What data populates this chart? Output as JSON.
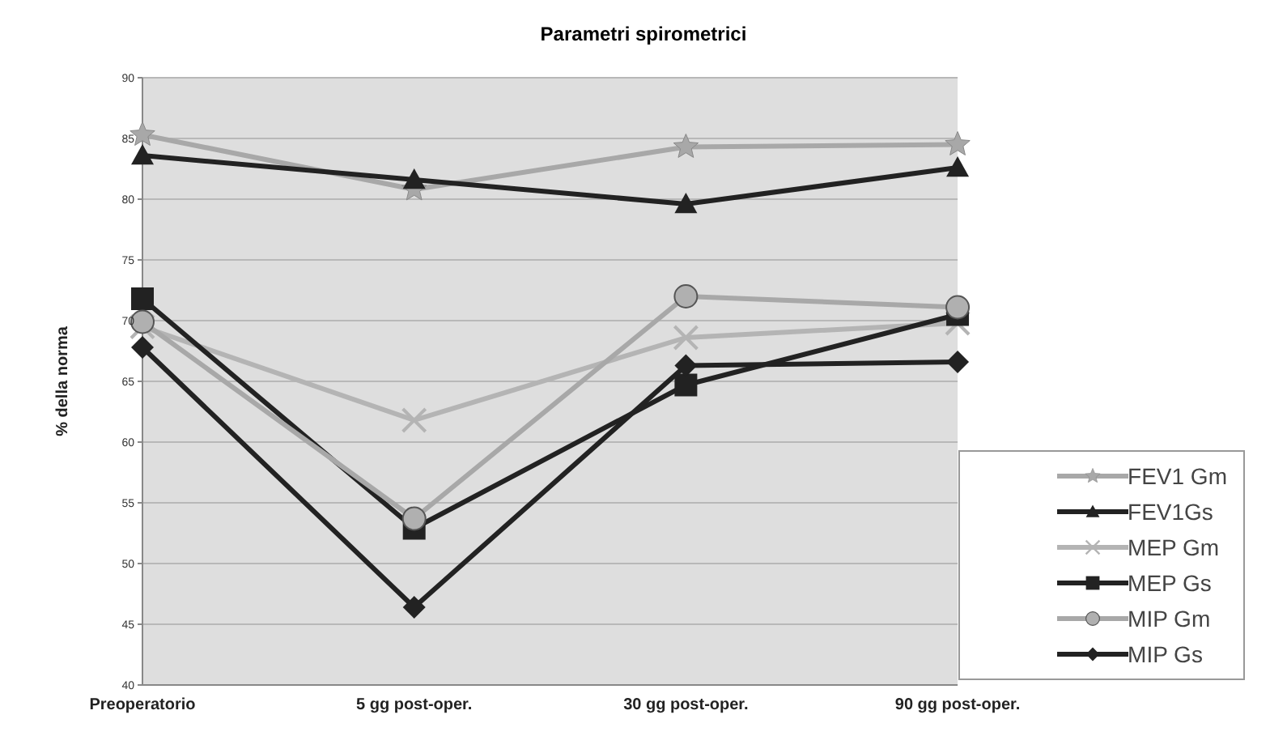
{
  "chart_data": {
    "type": "line",
    "title": "Parametri spirometrici",
    "ylabel": "% della norma",
    "categories": [
      "Preoperatorio",
      "5 gg post-oper.",
      "30 gg post-oper.",
      "90 gg post-oper."
    ],
    "series": [
      {
        "name": "FEV1 Gm",
        "color": "#a8a8a8",
        "marker": "star",
        "values": [
          85.3,
          80.8,
          84.3,
          84.5
        ]
      },
      {
        "name": "FEV1Gs",
        "color": "#222222",
        "marker": "triangle",
        "values": [
          83.6,
          81.6,
          79.6,
          82.6
        ]
      },
      {
        "name": "MEP Gm",
        "color": "#b4b4b4",
        "marker": "cross",
        "values": [
          69.5,
          61.8,
          68.6,
          69.8
        ]
      },
      {
        "name": "MEP Gs",
        "color": "#222222",
        "marker": "square",
        "values": [
          71.8,
          52.9,
          64.7,
          70.5
        ]
      },
      {
        "name": "MIP Gm",
        "color": "#a8a8a8",
        "marker": "circle",
        "values": [
          69.9,
          53.7,
          72.0,
          71.1
        ]
      },
      {
        "name": "MIP Gs",
        "color": "#222222",
        "marker": "diamond",
        "values": [
          67.8,
          46.4,
          66.3,
          66.6
        ]
      }
    ],
    "ylim": [
      40,
      90
    ],
    "yticks": [
      40,
      45,
      50,
      55,
      60,
      65,
      70,
      75,
      80,
      85,
      90
    ],
    "grid": "y",
    "legend": "bottom right",
    "line_style": "solid"
  }
}
